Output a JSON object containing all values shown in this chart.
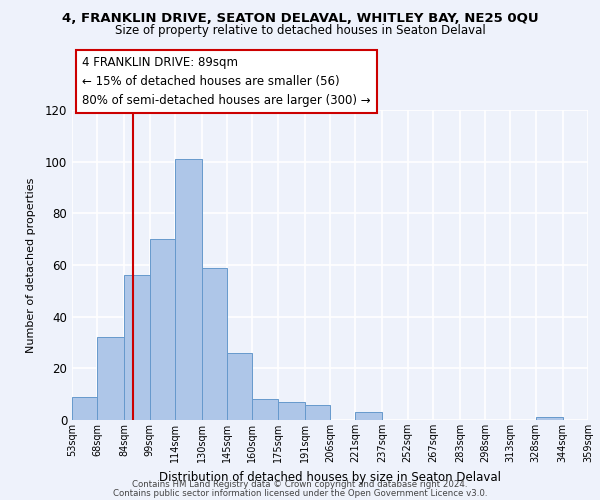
{
  "title1": "4, FRANKLIN DRIVE, SEATON DELAVAL, WHITLEY BAY, NE25 0QU",
  "title2": "Size of property relative to detached houses in Seaton Delaval",
  "xlabel": "Distribution of detached houses by size in Seaton Delaval",
  "ylabel": "Number of detached properties",
  "bin_edges": [
    53,
    68,
    84,
    99,
    114,
    130,
    145,
    160,
    175,
    191,
    206,
    221,
    237,
    252,
    267,
    283,
    298,
    313,
    328,
    344,
    359
  ],
  "bar_heights": [
    9,
    32,
    56,
    70,
    101,
    59,
    26,
    8,
    7,
    6,
    0,
    3,
    0,
    0,
    0,
    0,
    0,
    0,
    1,
    0
  ],
  "bar_color": "#aec6e8",
  "bar_edge_color": "#6699cc",
  "vline_x": 89,
  "vline_color": "#cc0000",
  "annotation_box_text": "4 FRANKLIN DRIVE: 89sqm\n← 15% of detached houses are smaller (56)\n80% of semi-detached houses are larger (300) →",
  "ylim": [
    0,
    120
  ],
  "yticks": [
    0,
    20,
    40,
    60,
    80,
    100,
    120
  ],
  "tick_labels": [
    "53sqm",
    "68sqm",
    "84sqm",
    "99sqm",
    "114sqm",
    "130sqm",
    "145sqm",
    "160sqm",
    "175sqm",
    "191sqm",
    "206sqm",
    "221sqm",
    "237sqm",
    "252sqm",
    "267sqm",
    "283sqm",
    "298sqm",
    "313sqm",
    "328sqm",
    "344sqm",
    "359sqm"
  ],
  "footer1": "Contains HM Land Registry data © Crown copyright and database right 2024.",
  "footer2": "Contains public sector information licensed under the Open Government Licence v3.0.",
  "background_color": "#eef2fb",
  "grid_color": "#ffffff"
}
